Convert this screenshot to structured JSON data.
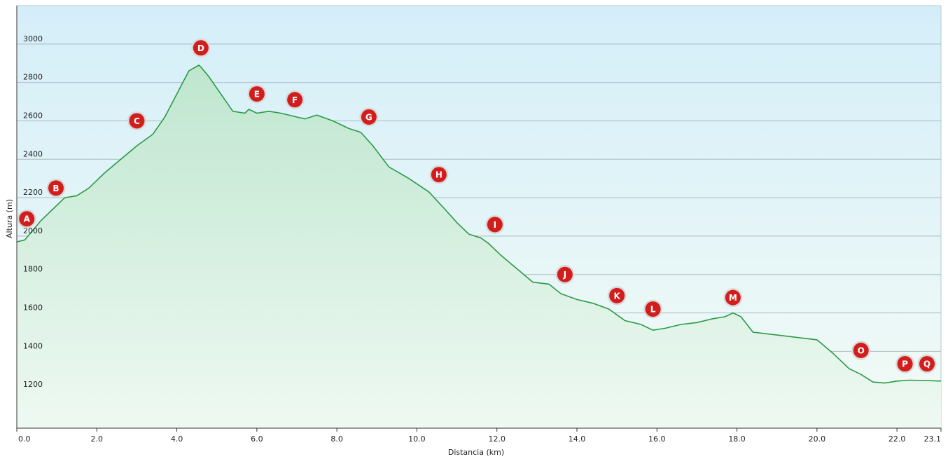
{
  "chart_data": {
    "type": "area",
    "xlabel": "Distancia  (km)",
    "ylabel": "Altura (m)",
    "xlim": [
      0,
      23.1
    ],
    "ylim": [
      1000,
      3200
    ],
    "grid": true,
    "x_ticks": [
      "0.0",
      "2.0",
      "4.0",
      "6.0",
      "8.0",
      "10.0",
      "12.0",
      "14.0",
      "16.0",
      "18.0",
      "20.0",
      "22.0",
      "23.1"
    ],
    "y_ticks": [
      "1200",
      "1400",
      "1600",
      "1800",
      "2000",
      "2200",
      "2400",
      "2600",
      "2800",
      "3000"
    ],
    "series": [
      {
        "x": [
          0.0,
          0.2,
          0.6,
          0.9,
          1.2,
          1.5,
          1.8,
          2.2,
          2.6,
          3.0,
          3.4,
          3.7,
          4.0,
          4.3,
          4.55,
          4.6,
          4.8,
          5.1,
          5.4,
          5.7,
          5.8,
          6.0,
          6.3,
          6.6,
          7.0,
          7.2,
          7.5,
          7.9,
          8.3,
          8.6,
          8.9,
          9.3,
          9.8,
          10.3,
          10.7,
          11.0,
          11.3,
          11.6,
          11.8,
          12.1,
          12.5,
          12.9,
          13.3,
          13.6,
          14.0,
          14.4,
          14.8,
          15.2,
          15.6,
          15.9,
          16.2,
          16.6,
          17.0,
          17.4,
          17.7,
          17.9,
          18.1,
          18.4,
          18.8,
          19.2,
          19.6,
          20.0,
          20.4,
          20.8,
          21.1,
          21.4,
          21.7,
          22.0,
          22.3,
          22.7,
          23.1
        ],
        "y": [
          1970,
          1980,
          2080,
          2140,
          2200,
          2210,
          2250,
          2330,
          2400,
          2470,
          2530,
          2620,
          2740,
          2860,
          2890,
          2880,
          2830,
          2740,
          2650,
          2640,
          2660,
          2640,
          2650,
          2640,
          2620,
          2610,
          2630,
          2600,
          2560,
          2540,
          2470,
          2360,
          2300,
          2230,
          2140,
          2070,
          2010,
          1990,
          1960,
          1900,
          1830,
          1760,
          1750,
          1700,
          1670,
          1650,
          1620,
          1560,
          1540,
          1510,
          1520,
          1540,
          1550,
          1570,
          1580,
          1600,
          1580,
          1500,
          1490,
          1480,
          1470,
          1460,
          1390,
          1310,
          1280,
          1240,
          1235,
          1245,
          1250,
          1248,
          1245
        ]
      }
    ],
    "waypoints": [
      {
        "label": "A",
        "x": 0.25,
        "y": 2090
      },
      {
        "label": "B",
        "x": 0.98,
        "y": 2250
      },
      {
        "label": "C",
        "x": 3.0,
        "y": 2600
      },
      {
        "label": "D",
        "x": 4.6,
        "y": 2980
      },
      {
        "label": "E",
        "x": 6.0,
        "y": 2740
      },
      {
        "label": "F",
        "x": 6.95,
        "y": 2710
      },
      {
        "label": "G",
        "x": 8.8,
        "y": 2620
      },
      {
        "label": "H",
        "x": 10.55,
        "y": 2320
      },
      {
        "label": "I",
        "x": 11.95,
        "y": 2060
      },
      {
        "label": "J",
        "x": 13.7,
        "y": 1800
      },
      {
        "label": "K",
        "x": 15.0,
        "y": 1690
      },
      {
        "label": "L",
        "x": 15.9,
        "y": 1620
      },
      {
        "label": "M",
        "x": 17.9,
        "y": 1680
      },
      {
        "label": "O",
        "x": 21.1,
        "y": 1405
      },
      {
        "label": "P",
        "x": 22.2,
        "y": 1335
      },
      {
        "label": "Q",
        "x": 22.75,
        "y": 1335
      }
    ]
  },
  "colors": {
    "line": "#2a9a45",
    "bg_top": "#d4eef9",
    "bg_bottom": "#f3fbf6",
    "fill": "#c9ebd6",
    "grid": "#a9bdc1",
    "marker": "#d21d1d",
    "marker_ring": "#d8d8d8"
  }
}
